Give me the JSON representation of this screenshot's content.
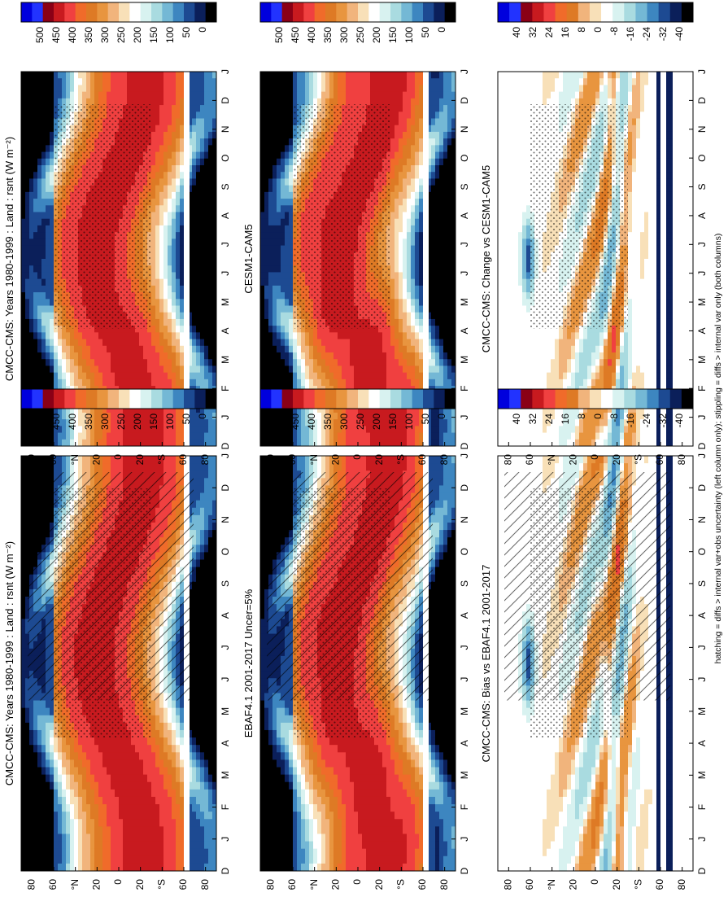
{
  "figure": {
    "caption": "hatching = diffs > internal var+obs uncertainty (left column only); stippling = diffs > internal var only (both columns)"
  },
  "chart_data": [
    {
      "type": "heatmap",
      "title": "CMCC-CMS: Years 1980-1999 : Land : rsnt (W m⁻²)",
      "x_ticks": [
        "D",
        "J",
        "F",
        "M",
        "A",
        "M",
        "J",
        "J",
        "A",
        "S",
        "O",
        "N",
        "D",
        "J"
      ],
      "y_ticks": [
        "80",
        "60",
        "°N",
        "20",
        "0",
        "20",
        "°S",
        "60",
        "80"
      ],
      "colorbar": [
        "500",
        "450",
        "400",
        "350",
        "300",
        "250",
        "200",
        "150",
        "100",
        "50",
        "0"
      ],
      "overlay": "hatching+stippling"
    },
    {
      "type": "heatmap",
      "title": "CMCC-CMS: Years 1980-1999 : Land : rsnt (W m⁻²)",
      "x_ticks": [
        "D",
        "J",
        "F",
        "M",
        "A",
        "M",
        "J",
        "J",
        "A",
        "S",
        "O",
        "N",
        "D",
        "J"
      ],
      "y_ticks": [
        "80",
        "60",
        "°N",
        "20",
        "0",
        "20",
        "°S",
        "60",
        "80"
      ],
      "colorbar": [
        "500",
        "450",
        "400",
        "350",
        "300",
        "250",
        "200",
        "150",
        "100",
        "50",
        "0"
      ],
      "overlay": "stippling"
    },
    {
      "type": "heatmap",
      "title": "EBAF4.1 2001-2017 Uncer=5%",
      "x_ticks": [
        "D",
        "J",
        "F",
        "M",
        "A",
        "M",
        "J",
        "J",
        "A",
        "S",
        "O",
        "N",
        "D",
        "J"
      ],
      "y_ticks": [
        "80",
        "60",
        "°N",
        "20",
        "0",
        "20",
        "°S",
        "60",
        "80"
      ],
      "colorbar": [
        "500",
        "450",
        "400",
        "350",
        "300",
        "250",
        "200",
        "150",
        "100",
        "50",
        "0"
      ],
      "overlay": "hatching+stippling"
    },
    {
      "type": "heatmap",
      "title": "CESM1-CAM5",
      "x_ticks": [
        "D",
        "J",
        "F",
        "M",
        "A",
        "M",
        "J",
        "J",
        "A",
        "S",
        "O",
        "N",
        "D",
        "J"
      ],
      "y_ticks": [
        "80",
        "60",
        "°N",
        "20",
        "0",
        "20",
        "°S",
        "60",
        "80"
      ],
      "colorbar": [
        "500",
        "450",
        "400",
        "350",
        "300",
        "250",
        "200",
        "150",
        "100",
        "50",
        "0"
      ],
      "overlay": "stippling"
    },
    {
      "type": "heatmap",
      "title": "CMCC-CMS: Bias vs EBAF4.1 2001-2017",
      "x_ticks": [
        "D",
        "J",
        "F",
        "M",
        "A",
        "M",
        "J",
        "J",
        "A",
        "S",
        "O",
        "N",
        "D",
        "J"
      ],
      "y_ticks": [
        "80",
        "60",
        "°N",
        "20",
        "0",
        "20",
        "°S",
        "60",
        "80"
      ],
      "colorbar": [
        "40",
        "32",
        "24",
        "16",
        "8",
        "0",
        "-8",
        "-16",
        "-24",
        "-32",
        "-40"
      ],
      "overlay": "hatching+stippling"
    },
    {
      "type": "heatmap",
      "title": "CMCC-CMS: Change vs CESM1-CAM5",
      "x_ticks": [
        "D",
        "J",
        "F",
        "M",
        "A",
        "M",
        "J",
        "J",
        "A",
        "S",
        "O",
        "N",
        "D",
        "J"
      ],
      "y_ticks": [
        "80",
        "60",
        "°N",
        "20",
        "0",
        "20",
        "°S",
        "60",
        "80"
      ],
      "colorbar": [
        "40",
        "32",
        "24",
        "16",
        "8",
        "0",
        "-8",
        "-16",
        "-24",
        "-32",
        "-40"
      ],
      "overlay": "stippling"
    }
  ]
}
